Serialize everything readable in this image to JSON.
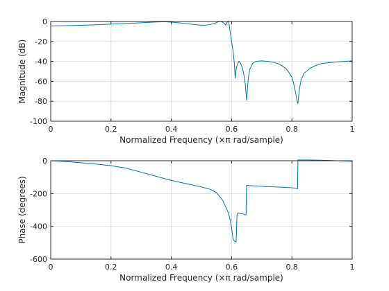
{
  "chart_data": [
    {
      "type": "line",
      "title": "",
      "xlabel": "Normalized Frequency  (×π rad/sample)",
      "ylabel": "Magnitude (dB)",
      "xlim": [
        0,
        1
      ],
      "ylim": [
        -100,
        0
      ],
      "xticks": [
        0,
        0.2,
        0.4,
        0.6,
        0.8,
        1
      ],
      "xtick_labels": [
        "0",
        "0.2",
        "0.4",
        "0.6",
        "0.8",
        "1"
      ],
      "yticks": [
        0,
        -20,
        -40,
        -60,
        -80,
        -100
      ],
      "ytick_labels": [
        "0",
        "-20",
        "-40",
        "-60",
        "-80",
        "-100"
      ],
      "grid": true,
      "color": "#0072bd",
      "series": [
        {
          "x": [
            0,
            0.05,
            0.1,
            0.15,
            0.2,
            0.25,
            0.3,
            0.35,
            0.38,
            0.4,
            0.43,
            0.46,
            0.49,
            0.51,
            0.53,
            0.545,
            0.56,
            0.57,
            0.58,
            0.585,
            0.59,
            0.6,
            0.605,
            0.61,
            0.612,
            0.615,
            0.62,
            0.625,
            0.63,
            0.635,
            0.64,
            0.645,
            0.648,
            0.65,
            0.652,
            0.655,
            0.66,
            0.67,
            0.68,
            0.7,
            0.72,
            0.74,
            0.76,
            0.78,
            0.79,
            0.8,
            0.805,
            0.81,
            0.815,
            0.818,
            0.82,
            0.822,
            0.825,
            0.83,
            0.84,
            0.86,
            0.88,
            0.9,
            0.95,
            1.0
          ],
          "y": [
            -4.5,
            -4.2,
            -3.8,
            -3.3,
            -2.7,
            -2.0,
            -1.3,
            -0.5,
            -0.3,
            -0.7,
            -1.5,
            -2.5,
            -3.6,
            -3.8,
            -3.0,
            -1.8,
            0.3,
            -0.6,
            -3.5,
            -1.0,
            0.5,
            -20,
            -30,
            -45,
            -57,
            -48,
            -42,
            -40,
            -42,
            -46,
            -52,
            -62,
            -72,
            -79,
            -70,
            -58,
            -48,
            -42,
            -40,
            -39.5,
            -40,
            -41,
            -43,
            -47,
            -51,
            -56,
            -61,
            -68,
            -76,
            -81,
            -82,
            -76,
            -68,
            -59,
            -52,
            -47,
            -44,
            -42,
            -40.5,
            -39.5
          ]
        }
      ]
    },
    {
      "type": "line",
      "title": "",
      "xlabel": "Normalized Frequency  (×π rad/sample)",
      "ylabel": "Phase (degrees)",
      "xlim": [
        0,
        1
      ],
      "ylim": [
        -600,
        0
      ],
      "xticks": [
        0,
        0.2,
        0.4,
        0.6,
        0.8,
        1
      ],
      "xtick_labels": [
        "0",
        "0.2",
        "0.4",
        "0.6",
        "0.8",
        "1"
      ],
      "yticks": [
        0,
        -200,
        -400,
        -600
      ],
      "ytick_labels": [
        "0",
        "-200",
        "-400",
        "-600"
      ],
      "grid": true,
      "color": "#0072bd",
      "series": [
        {
          "x": [
            0,
            0.05,
            0.1,
            0.15,
            0.2,
            0.25,
            0.3,
            0.35,
            0.4,
            0.45,
            0.5,
            0.53,
            0.55,
            0.57,
            0.58,
            0.59,
            0.595,
            0.6,
            0.605,
            0.61,
            0.615,
            0.618,
            0.62,
            0.625,
            0.63,
            0.64,
            0.645,
            0.648,
            0.649,
            0.65,
            0.655,
            0.66,
            0.7,
            0.75,
            0.8,
            0.819,
            0.82,
            0.821,
            0.85,
            0.9,
            0.95,
            1.0
          ],
          "y": [
            0,
            -5,
            -12,
            -20,
            -30,
            -45,
            -70,
            -95,
            -120,
            -140,
            -160,
            -175,
            -195,
            -240,
            -280,
            -320,
            -360,
            -410,
            -480,
            -490,
            -495,
            -330,
            -320,
            -320,
            -322,
            -325,
            -330,
            -330,
            -200,
            -150,
            -150,
            -152,
            -156,
            -160,
            -165,
            -170,
            5,
            5,
            5,
            3,
            0,
            -3
          ]
        }
      ]
    }
  ]
}
